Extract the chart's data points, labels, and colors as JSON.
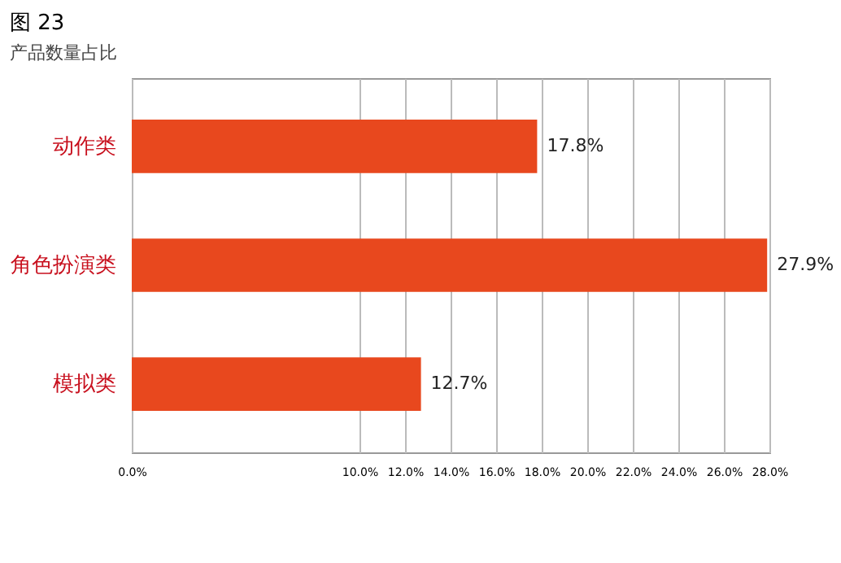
{
  "chart_data": {
    "type": "bar",
    "orientation": "horizontal",
    "title": "图 23",
    "subtitle": "产品数量占比",
    "categories": [
      "动作类",
      "角色扮演类",
      "模拟类"
    ],
    "values": [
      17.8,
      27.9,
      12.7
    ],
    "color": "#e8481e",
    "value_labels": [
      "17.8%",
      "27.9%",
      "12.7%"
    ],
    "xlim": [
      0,
      28
    ],
    "xticks": [
      {
        "value": 0,
        "label": "0.0%"
      },
      {
        "value": 10,
        "label": "10.0%"
      },
      {
        "value": 12,
        "label": "12.0%"
      },
      {
        "value": 14,
        "label": "14.0%"
      },
      {
        "value": 16,
        "label": "16.0%"
      },
      {
        "value": 18,
        "label": "18.0%"
      },
      {
        "value": 20,
        "label": "20.0%"
      },
      {
        "value": 22,
        "label": "22.0%"
      },
      {
        "value": 24,
        "label": "24.0%"
      },
      {
        "value": 26,
        "label": "26.0%"
      },
      {
        "value": 28,
        "label": "28.0%"
      }
    ],
    "grid": "x"
  }
}
